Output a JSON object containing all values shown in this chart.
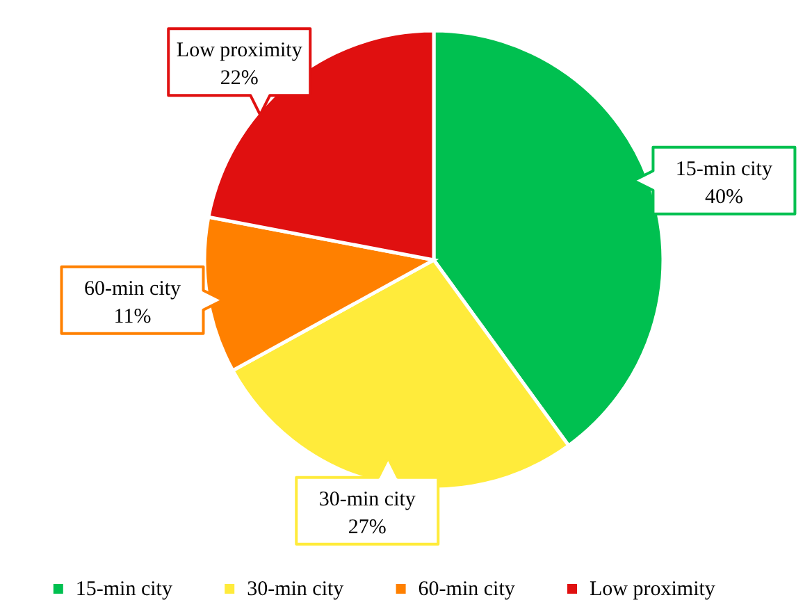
{
  "chart_data": {
    "type": "pie",
    "categories": [
      "15-min city",
      "30-min city",
      "60-min city",
      "Low proximity"
    ],
    "values": [
      40,
      27,
      11,
      22
    ],
    "colors": [
      "#00c050",
      "#ffeb3b",
      "#ff8000",
      "#e01010"
    ],
    "value_labels": [
      "40%",
      "27%",
      "11%",
      "22%"
    ],
    "legend": "bottom"
  }
}
